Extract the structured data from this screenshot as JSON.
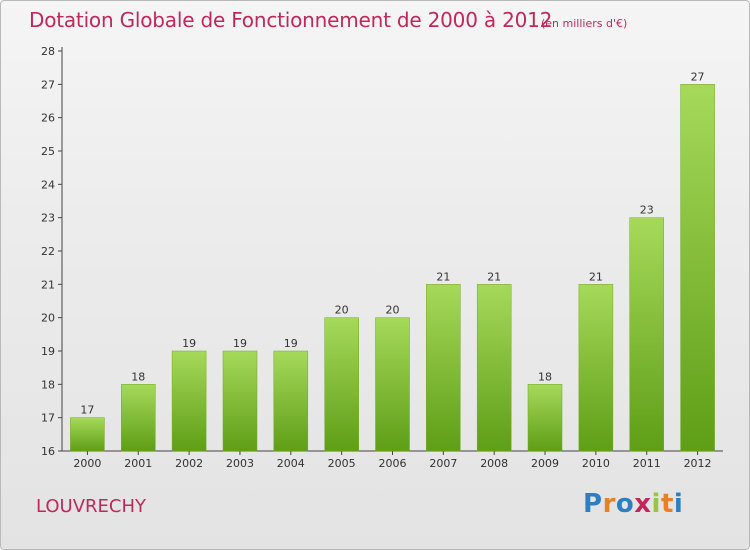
{
  "header": {
    "title": "Dotation Globale de Fonctionnement de 2000 à 2012",
    "subtitle": "(en milliers d'€)"
  },
  "footer": {
    "commune": "LOUVRECHY",
    "logo_text": "Proxiti",
    "logo_colors": [
      "#2e7fc1",
      "#e8811f",
      "#2e7fc1",
      "#c0285a",
      "#9bc53d",
      "#e8811f",
      "#2e7fc1"
    ]
  },
  "chart_data": {
    "type": "bar",
    "categories": [
      "2000",
      "2001",
      "2002",
      "2003",
      "2004",
      "2005",
      "2006",
      "2007",
      "2008",
      "2009",
      "2010",
      "2011",
      "2012"
    ],
    "values": [
      17,
      18,
      19,
      19,
      19,
      20,
      20,
      21,
      21,
      18,
      21,
      23,
      27
    ],
    "data_labels": [
      "17",
      "18",
      "19",
      "19",
      "19",
      "20",
      "20",
      "21",
      "21",
      "18",
      "21",
      "23",
      "27"
    ],
    "y_ticks": [
      16,
      17,
      18,
      19,
      20,
      21,
      22,
      23,
      24,
      25,
      26,
      27,
      28
    ],
    "ylim": [
      16,
      28
    ],
    "xlabel": "",
    "ylabel": "",
    "grid": false,
    "legend": "none",
    "colors": {
      "bar_top": "#a6d95a",
      "bar_bottom": "#5f9e17",
      "bar_stroke": "#6faa22",
      "axis": "#444444"
    }
  }
}
